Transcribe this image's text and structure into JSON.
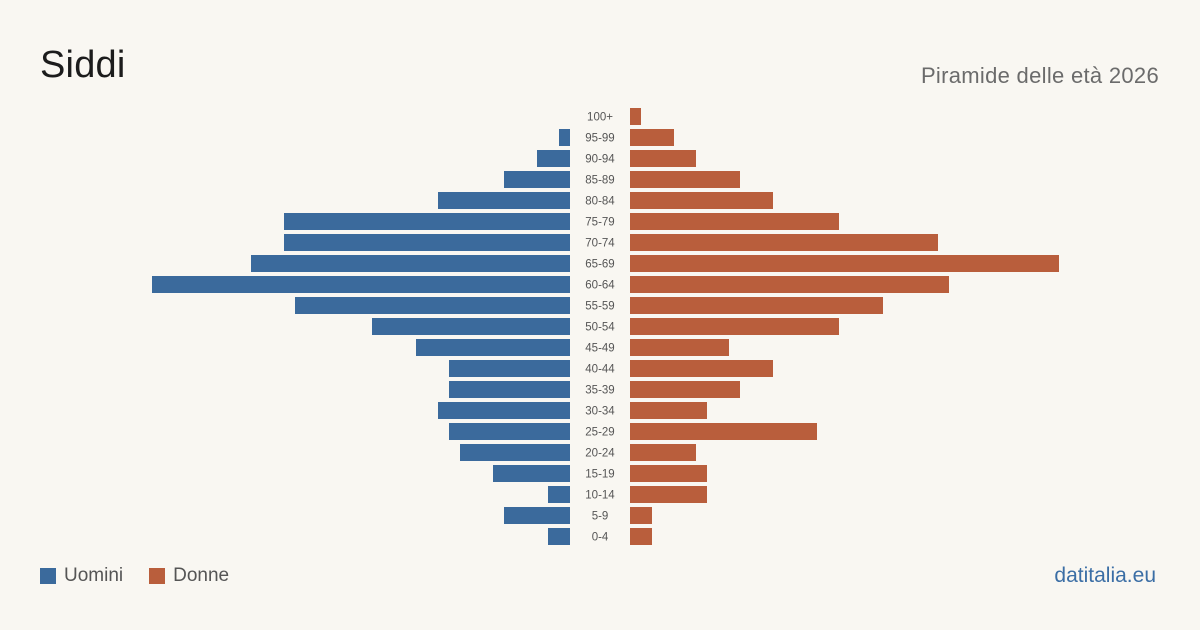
{
  "header": {
    "title": "Siddi",
    "subtitle": "Piramide delle età 2026"
  },
  "legend": {
    "male_label": "Uomini",
    "female_label": "Donne"
  },
  "brand": "datitalia.eu",
  "colors": {
    "male": "#3b6a9c",
    "female": "#b95e3c",
    "background": "#f9f7f2"
  },
  "chart_data": {
    "type": "bar",
    "orientation": "horizontal-population-pyramid",
    "categories": [
      "100+",
      "95-99",
      "90-94",
      "85-89",
      "80-84",
      "75-79",
      "70-74",
      "65-69",
      "60-64",
      "55-59",
      "50-54",
      "45-49",
      "40-44",
      "35-39",
      "30-34",
      "25-29",
      "20-24",
      "15-19",
      "10-14",
      "5-9",
      "0-4"
    ],
    "series": [
      {
        "name": "Uomini",
        "values": [
          0,
          1,
          3,
          6,
          12,
          26,
          26,
          29,
          38,
          25,
          18,
          14,
          11,
          11,
          12,
          11,
          10,
          7,
          2,
          6,
          2
        ]
      },
      {
        "name": "Donne",
        "values": [
          1,
          4,
          6,
          10,
          13,
          19,
          28,
          39,
          29,
          23,
          19,
          9,
          13,
          10,
          7,
          17,
          6,
          7,
          7,
          2,
          2
        ]
      }
    ],
    "xlim": [
      0,
      40
    ]
  }
}
